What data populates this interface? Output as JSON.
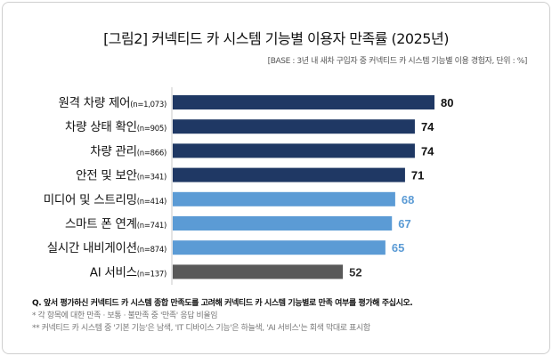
{
  "chart_data": {
    "type": "bar",
    "orientation": "horizontal",
    "title": "[그림2]  커넥티드 카 시스템 기능별 이용자 만족률 (2025년)",
    "subtitle": "[BASE : 3년 내 새차  구입자 중 커넥티드 카 시스템 기능별 이용 경험자, 단위 : %]",
    "categories": [
      "원격 차량 제어",
      "차량 상태 확인",
      "차량 관리",
      "안전 및 보안",
      "미디어 및 스트리밍",
      "스마트 폰 연계",
      "실시간 내비게이션",
      "AI 서비스"
    ],
    "sample_sizes": [
      "(n=1,073)",
      "(n=905)",
      "(n=866)",
      "(n=341)",
      "(n=414)",
      "(n=741)",
      "(n=874)",
      "(n=137)"
    ],
    "values": [
      80,
      74,
      74,
      71,
      68,
      67,
      65,
      52
    ],
    "groups": [
      "basic",
      "basic",
      "basic",
      "basic",
      "it",
      "it",
      "it",
      "ai"
    ],
    "colors": {
      "basic": "#1f3864",
      "it": "#5b9bd5",
      "ai": "#595959"
    },
    "label_colors": {
      "basic": "#111111",
      "it": "#5b9bd5",
      "ai": "#333333"
    },
    "xlim": [
      0,
      80
    ],
    "grid": false,
    "legend": "none"
  },
  "notes": {
    "question": "Q. 앞서 평가하신 커넥티드 카 시스템 종합 만족도를 고려해 커넥티드 카 시스템 기능별로 만족 여부를 평가해 주십시오.",
    "note1": "* 각 항목에 대한 만족 · 보통 · 불만족 중 '만족' 응답 비율임",
    "note2": "** 커넥티드 카 시스템 중 '기본 기능'은 남색, 'IT 디바이스 기능'은 하늘색, 'AI 서비스'는 회색 막대로 표시함"
  }
}
